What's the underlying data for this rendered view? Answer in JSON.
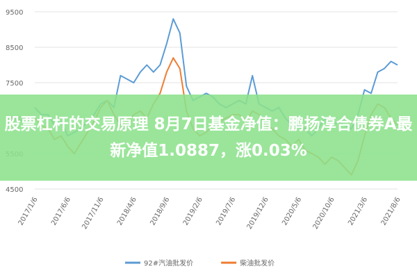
{
  "chart_data": {
    "type": "line",
    "title": "股票杠杆的交易原理 8月7日基金净值：鹏扬淳合债券A最新净值1.0887，涨0.03%",
    "categories": [
      "2017/1/6",
      null,
      null,
      null,
      null,
      "2017/6/6",
      null,
      null,
      null,
      null,
      "2017/11/6",
      null,
      null,
      null,
      null,
      "2018/4/6",
      null,
      null,
      null,
      null,
      "2018/9/6",
      null,
      null,
      null,
      null,
      "2019/2/6",
      null,
      null,
      null,
      null,
      "2019/7/6",
      null,
      null,
      null,
      null,
      "2019/12/6",
      null,
      null,
      null,
      null,
      "2020/5/6",
      null,
      null,
      null,
      null,
      "2020/10/6",
      null,
      null,
      null,
      null,
      "2021/3/6",
      null,
      null,
      null,
      null,
      "2021/8/6"
    ],
    "series": [
      {
        "name": "92#汽油批发价",
        "color": "#5b9bd5",
        "values": [
          6800,
          6600,
          6600,
          6300,
          6400,
          6000,
          6100,
          6200,
          6400,
          6600,
          6900,
          7000,
          6800,
          7700,
          7600,
          7500,
          7800,
          8000,
          7800,
          8000,
          8600,
          9300,
          8900,
          7400,
          7000,
          7100,
          7200,
          7100,
          6900,
          6800,
          6900,
          7000,
          6900,
          7700,
          6900,
          6800,
          6700,
          6800,
          6500,
          6300,
          6300,
          6200,
          6000,
          6200,
          6500,
          6300,
          6400,
          6300,
          6200,
          6600,
          7300,
          7200,
          7800,
          7900,
          8100,
          8000
        ]
      },
      {
        "name": "柴油批发价",
        "color": "#ed7d31",
        "values": [
          6500,
          6300,
          6200,
          5900,
          6000,
          5700,
          5500,
          5800,
          6100,
          6400,
          6800,
          7000,
          6600,
          6300,
          6400,
          6600,
          6700,
          6500,
          6900,
          7200,
          7800,
          8200,
          7900,
          6700,
          6200,
          6000,
          6100,
          6300,
          6400,
          6500,
          6600,
          6600,
          6400,
          6700,
          6600,
          6300,
          6200,
          6000,
          5900,
          5700,
          5900,
          5600,
          5500,
          5400,
          5200,
          5400,
          5300,
          5100,
          4900,
          5300,
          6000,
          6600,
          6900,
          6800,
          6500,
          6300
        ]
      }
    ],
    "ylim": [
      4500,
      9500
    ],
    "yticks": [
      4500,
      5500,
      6500,
      7500,
      8500,
      9500
    ],
    "grid": true
  }
}
